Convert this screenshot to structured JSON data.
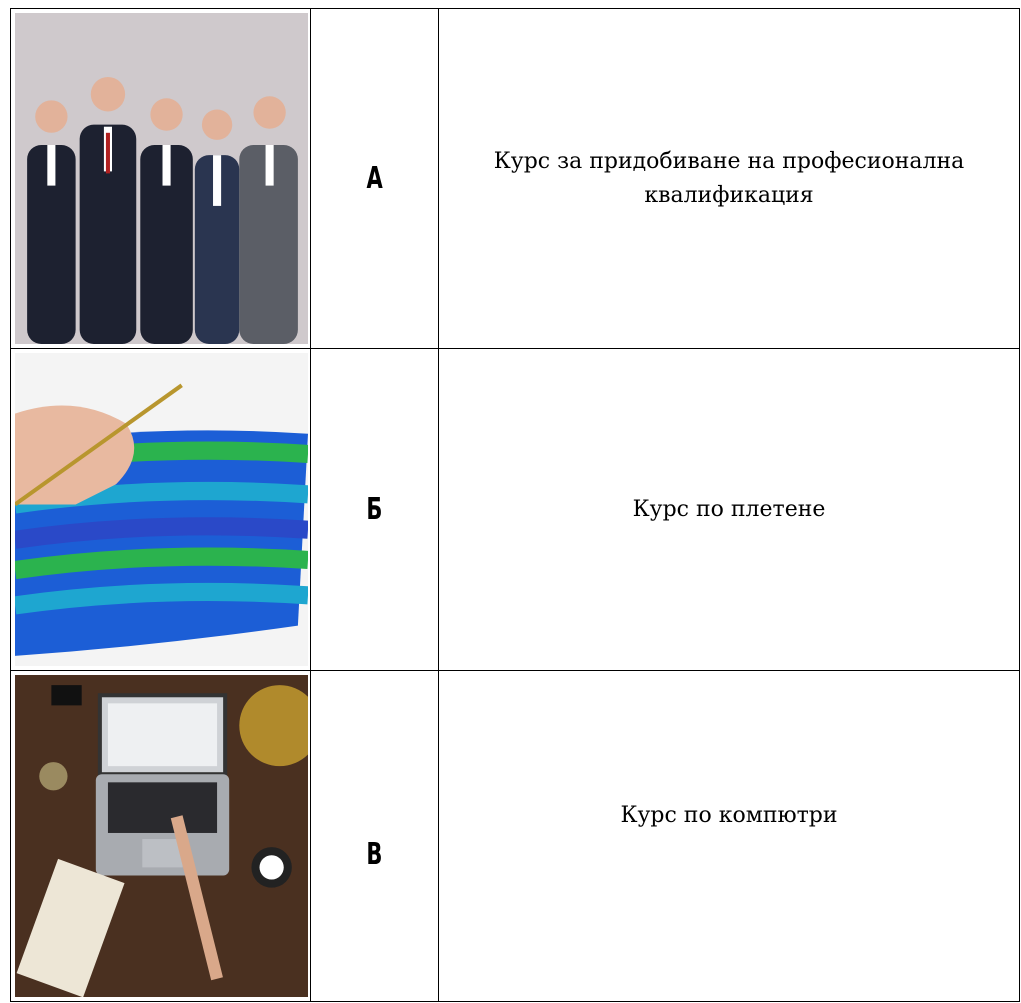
{
  "table": {
    "rows": [
      {
        "letter": "А",
        "text": "Курс за придобиване на професионална квалификация"
      },
      {
        "letter": "Б",
        "text": "Курс по плетене"
      },
      {
        "letter": "В",
        "text": "Курс по компютри"
      }
    ]
  }
}
